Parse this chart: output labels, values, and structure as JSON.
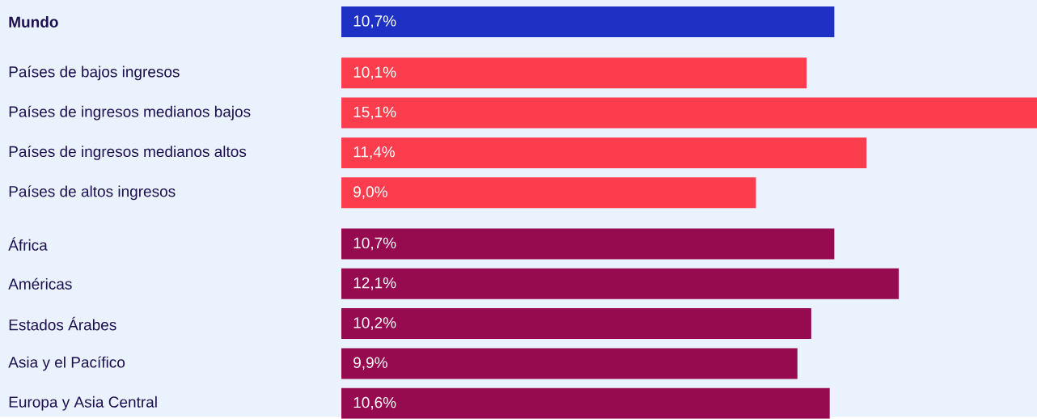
{
  "chart_data": {
    "type": "bar",
    "orientation": "horizontal",
    "categories": [
      "Mundo",
      "Países de bajos ingresos",
      "Países de ingresos medianos bajos",
      "Países de ingresos medianos altos",
      "Países de altos ingresos",
      "África",
      "Américas",
      "Estados Árabes",
      "Asia y el Pacífico",
      "Europa y Asia Central"
    ],
    "values": [
      10.7,
      10.1,
      15.1,
      11.4,
      9.0,
      10.7,
      12.1,
      10.2,
      9.9,
      10.6
    ],
    "colors": [
      "#1f30c4",
      "#fc3d4d",
      "#fc3d4d",
      "#fc3d4d",
      "#fc3d4d",
      "#960a50",
      "#960a50",
      "#960a50",
      "#960a50",
      "#960a50"
    ],
    "value_labels": [
      "10,7%",
      "10,1%",
      "15,1%",
      "11,4%",
      "9,0%",
      "10,7%",
      "12,1%",
      "10,2%",
      "9,9%",
      "10,6%"
    ]
  }
}
